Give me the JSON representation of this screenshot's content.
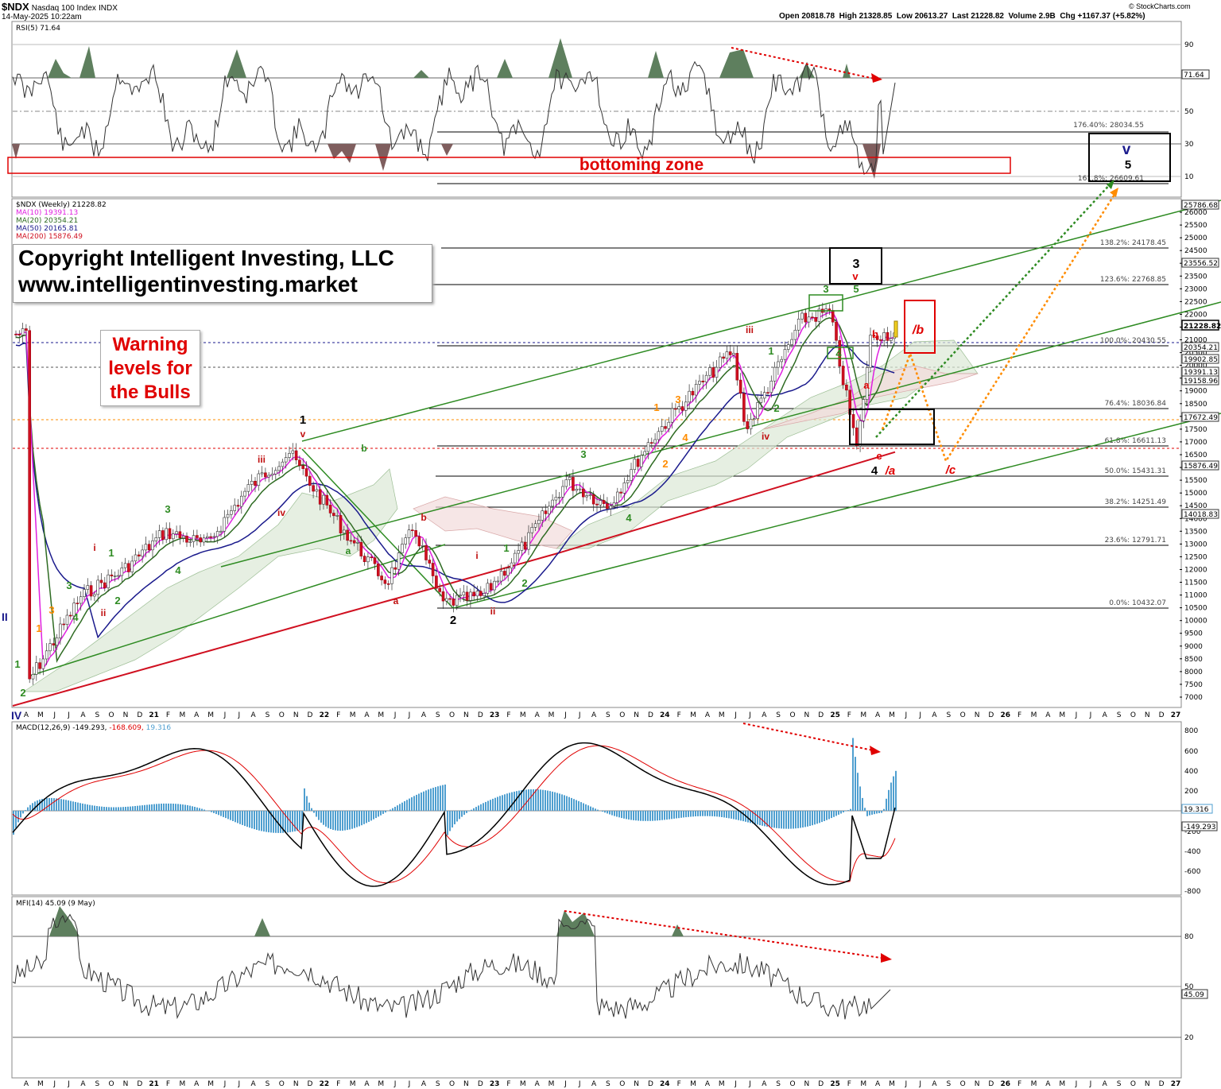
{
  "header": {
    "symbol": "$NDX",
    "name": "Nasdaq 100 Index",
    "exchange": "INDX",
    "timestamp": "14-May-2025 10:22am",
    "quote": "Open 20818.78  High 21328.85  Low 20613.27  Last 21228.82  Volume 2.9B  Chg +1167.37 (+5.82%)",
    "source": "© StockCharts.com"
  },
  "copyright": {
    "line1": "Copyright Intelligent Investing, LLC",
    "line2": "www.intelligentinvesting.market"
  },
  "warning": {
    "line1": "Warning",
    "line2": "levels for",
    "line3": "the Bulls"
  },
  "rsi": {
    "title": "RSI(5) 71.64",
    "last": "71.64",
    "ticks": [
      "90",
      "50",
      "30",
      "10"
    ],
    "zone_label": "bottoming zone",
    "fib_176": "176.40%: 28034.55",
    "fib_161": "161.8%: 26609.61"
  },
  "target": {
    "wave_v": "v",
    "wave_5": "5"
  },
  "price": {
    "title": "$NDX (Weekly) 21228.82",
    "ma10": "MA(10) 19391.13",
    "ma20": "MA(20) 20354.21",
    "ma50": "MA(50) 20165.81",
    "ma200": "MA(200) 15876.49",
    "ticks": [
      "26000",
      "25500",
      "25000",
      "24500",
      "24000",
      "23500",
      "23000",
      "22500",
      "22000",
      "21500",
      "21000",
      "20500",
      "20000",
      "19500",
      "19000",
      "18500",
      "18000",
      "17500",
      "17000",
      "16500",
      "16000",
      "15500",
      "15000",
      "14500",
      "14000",
      "13500",
      "13000",
      "12500",
      "12000",
      "11500",
      "11000",
      "10500",
      "10000",
      "9500",
      "9000",
      "8500",
      "8000",
      "7500",
      "7000"
    ],
    "right_labels": {
      "last": "21228.82",
      "l1": "25786.68",
      "l2": "23556.52",
      "l3": "20354.21",
      "l4": "19902.85",
      "l5": "19391.13",
      "l6": "19158.96",
      "l7": "17672.49",
      "l8": "15876.49",
      "l9": "14018.83"
    },
    "fibs": {
      "f1382": "138.2%: 24178.45",
      "f1236": "123.6%: 22768.85",
      "f1000": "100.0%: 20430.55",
      "f764": "76.4%: 18036.84",
      "f618": "61.8%: 16611.13",
      "f500": "50.0%: 15431.31",
      "f382": "38.2%: 14251.49",
      "f236": "23.6%: 12791.71",
      "f000": "0.0%: 10432.07"
    }
  },
  "waves": {
    "w1": "1",
    "w2": "2",
    "w3": "3",
    "w4": "4",
    "wa": "/a",
    "wb": "/b",
    "wc": "/c",
    "c_red": "c",
    "a_red": "a",
    "b_red": "b",
    "v_red": "v",
    "iii": "iii",
    "iv": "iv",
    "ii": "ii",
    "i": "i",
    "g1": "1",
    "g2": "2",
    "g3": "3",
    "g4": "4",
    "g5": "5",
    "o1": "1",
    "o2": "2",
    "o3": "3",
    "o4": "4",
    "ga": "a",
    "gb": "b",
    "left_II": "II",
    "left_IV": "IV"
  },
  "macd": {
    "title_main": "MACD(12,26,9) -149.293,",
    "title_signal": "-168.609,",
    "title_hist": "19.316",
    "hist_label": "19.316",
    "macd_label": "-149.293",
    "ticks": [
      "800",
      "600",
      "400",
      "200",
      "-200",
      "-400",
      "-600",
      "-800"
    ]
  },
  "mfi": {
    "title": "MFI(14) 45.09 (9 May)",
    "last": "45.09",
    "ticks": [
      "80",
      "50",
      "20"
    ]
  },
  "xaxis": [
    "A",
    "M",
    "J",
    "J",
    "A",
    "S",
    "O",
    "N",
    "D",
    "21",
    "F",
    "M",
    "A",
    "M",
    "J",
    "J",
    "A",
    "S",
    "O",
    "N",
    "D",
    "22",
    "F",
    "M",
    "A",
    "M",
    "J",
    "J",
    "A",
    "S",
    "O",
    "N",
    "D",
    "23",
    "F",
    "M",
    "A",
    "M",
    "J",
    "J",
    "A",
    "S",
    "O",
    "N",
    "D",
    "24",
    "F",
    "M",
    "A",
    "M",
    "J",
    "J",
    "A",
    "S",
    "O",
    "N",
    "D",
    "25",
    "F",
    "M",
    "A",
    "M",
    "J",
    "J",
    "A",
    "S",
    "O",
    "N",
    "D",
    "26",
    "F",
    "M",
    "A",
    "M",
    "J",
    "J",
    "A",
    "S",
    "O",
    "N",
    "D",
    "27"
  ],
  "colors": {
    "green": "#2e8b22",
    "red": "#e00000",
    "orange": "#ff8c00",
    "navy": "#1a1a8c",
    "magenta": "#e020e0",
    "fill_green": "#5e7f5e",
    "fill_red": "#7f5e5e",
    "hist": "#4f9fd0"
  },
  "chart_data": {
    "type": "line",
    "title": "$NDX Nasdaq 100 Index (Weekly)",
    "x_range": [
      "Apr 2020",
      "Mar 2027"
    ],
    "ylim": [
      7000,
      26000
    ],
    "series": [
      {
        "name": "NDX close (approx)",
        "points": [
          [
            "2020-04",
            7500
          ],
          [
            "2020-08",
            11000
          ],
          [
            "2020-11",
            12000
          ],
          [
            "2021-02",
            13500
          ],
          [
            "2021-05",
            13000
          ],
          [
            "2021-08",
            15200
          ],
          [
            "2021-11",
            16600
          ],
          [
            "2022-01",
            15000
          ],
          [
            "2022-03",
            13500
          ],
          [
            "2022-06",
            11500
          ],
          [
            "2022-08",
            13700
          ],
          [
            "2022-10",
            10700
          ],
          [
            "2023-01",
            11000
          ],
          [
            "2023-04",
            13000
          ],
          [
            "2023-07",
            15500
          ],
          [
            "2023-10",
            14500
          ],
          [
            "2024-01",
            17000
          ],
          [
            "2024-03",
            18300
          ],
          [
            "2024-07",
            20600
          ],
          [
            "2024-08",
            17500
          ],
          [
            "2024-12",
            21800
          ],
          [
            "2025-02",
            22100
          ],
          [
            "2025-04",
            16700
          ],
          [
            "2025-05",
            21229
          ]
        ]
      },
      {
        "name": "MA(10)",
        "last": 19391.13
      },
      {
        "name": "MA(20)",
        "last": 20354.21
      },
      {
        "name": "MA(50)",
        "last": 20165.81
      },
      {
        "name": "MA(200)",
        "last": 15876.49
      }
    ],
    "fib_levels": [
      {
        "pct": "176.4%",
        "value": 28034.55
      },
      {
        "pct": "161.8%",
        "value": 26609.61
      },
      {
        "pct": "138.2%",
        "value": 24178.45
      },
      {
        "pct": "123.6%",
        "value": 22768.85
      },
      {
        "pct": "100.0%",
        "value": 20430.55
      },
      {
        "pct": "76.4%",
        "value": 18036.84
      },
      {
        "pct": "61.8%",
        "value": 16611.13
      },
      {
        "pct": "50.0%",
        "value": 15431.31
      },
      {
        "pct": "38.2%",
        "value": 14251.49
      },
      {
        "pct": "23.6%",
        "value": 12791.71
      },
      {
        "pct": "0.0%",
        "value": 10432.07
      }
    ],
    "indicators": {
      "RSI(5)": 71.64,
      "MACD": -149.293,
      "Signal": -168.609,
      "Hist": 19.316,
      "MFI(14)": 45.09
    }
  }
}
